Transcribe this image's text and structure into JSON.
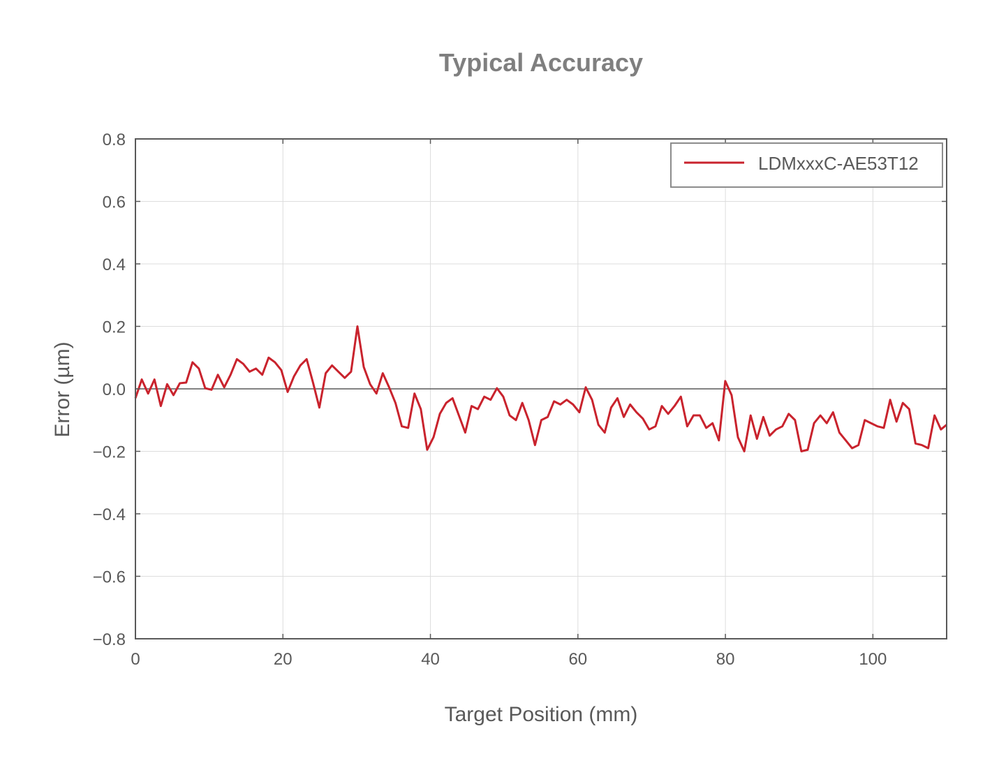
{
  "chart_data": {
    "type": "line",
    "title": "Typical Accuracy",
    "xlabel": "Target Position (mm)",
    "ylabel": "Error (µm)",
    "xlim": [
      0,
      110
    ],
    "ylim": [
      -0.8,
      0.8
    ],
    "xticks": [
      0,
      20,
      40,
      60,
      80,
      100
    ],
    "xtick_labels": [
      "0",
      "20",
      "40",
      "60",
      "80",
      "100"
    ],
    "yticks": [
      -0.8,
      -0.6,
      -0.4,
      -0.2,
      0.0,
      0.2,
      0.4,
      0.6,
      0.8
    ],
    "ytick_labels": [
      "−0.8",
      "−0.6",
      "−0.4",
      "−0.2",
      "0.0",
      "0.2",
      "0.4",
      "0.6",
      "0.8"
    ],
    "grid": true,
    "zero_line": true,
    "legend_position": "top-right",
    "colors": {
      "series": "#c9232d",
      "grid": "#dddddd",
      "axis": "#595959",
      "zero_line": "#595959"
    },
    "series": [
      {
        "name": "LDMxxxC-AE53T12",
        "x": [
          0,
          0.86,
          1.72,
          2.58,
          3.44,
          4.3,
          5.16,
          6.02,
          6.88,
          7.74,
          8.6,
          9.46,
          10.32,
          11.18,
          12.04,
          12.9,
          13.76,
          14.62,
          15.48,
          16.34,
          17.2,
          18.06,
          18.92,
          19.78,
          20.64,
          21.5,
          22.36,
          23.22,
          24.08,
          24.94,
          25.8,
          26.66,
          27.52,
          28.38,
          29.24,
          30.1,
          30.96,
          31.82,
          32.68,
          33.54,
          34.4,
          35.26,
          36.12,
          36.98,
          37.84,
          38.7,
          39.56,
          40.42,
          41.28,
          42.14,
          43.0,
          43.86,
          44.72,
          45.58,
          46.44,
          47.3,
          48.16,
          49.02,
          49.88,
          50.74,
          51.6,
          52.46,
          53.32,
          54.18,
          55.04,
          55.9,
          56.76,
          57.62,
          58.48,
          59.34,
          60.2,
          61.06,
          61.92,
          62.78,
          63.64,
          64.5,
          65.36,
          66.22,
          67.08,
          67.94,
          68.8,
          69.66,
          70.52,
          71.38,
          72.24,
          73.1,
          73.96,
          74.82,
          75.68,
          76.54,
          77.4,
          78.26,
          79.12,
          79.98,
          80.84,
          81.7,
          82.56,
          83.42,
          84.28,
          85.14,
          86.0,
          86.86,
          87.72,
          88.58,
          89.44,
          90.3,
          91.16,
          92.02,
          92.88,
          93.74,
          94.6,
          95.46,
          96.32,
          97.18,
          98.04,
          98.9,
          99.76,
          100.62,
          101.48,
          102.34,
          103.2,
          104.06,
          104.92,
          105.78,
          106.64,
          107.5,
          108.36,
          109.22,
          110.0
        ],
        "values": [
          -0.03,
          0.03,
          -0.015,
          0.03,
          -0.055,
          0.015,
          -0.02,
          0.018,
          0.02,
          0.085,
          0.065,
          0.002,
          -0.003,
          0.045,
          0.005,
          0.045,
          0.095,
          0.08,
          0.055,
          0.065,
          0.045,
          0.1,
          0.085,
          0.06,
          -0.01,
          0.04,
          0.075,
          0.095,
          0.02,
          -0.06,
          0.05,
          0.075,
          0.055,
          0.035,
          0.055,
          0.2,
          0.07,
          0.015,
          -0.015,
          0.05,
          0.005,
          -0.045,
          -0.12,
          -0.125,
          -0.015,
          -0.065,
          -0.195,
          -0.155,
          -0.08,
          -0.045,
          -0.03,
          -0.085,
          -0.14,
          -0.055,
          -0.065,
          -0.025,
          -0.035,
          0.002,
          -0.025,
          -0.085,
          -0.1,
          -0.045,
          -0.1,
          -0.18,
          -0.1,
          -0.09,
          -0.04,
          -0.05,
          -0.035,
          -0.05,
          -0.075,
          0.005,
          -0.035,
          -0.115,
          -0.14,
          -0.06,
          -0.03,
          -0.09,
          -0.05,
          -0.075,
          -0.095,
          -0.13,
          -0.12,
          -0.055,
          -0.08,
          -0.055,
          -0.025,
          -0.12,
          -0.085,
          -0.085,
          -0.125,
          -0.11,
          -0.165,
          0.025,
          -0.02,
          -0.155,
          -0.2,
          -0.085,
          -0.16,
          -0.09,
          -0.15,
          -0.13,
          -0.12,
          -0.08,
          -0.1,
          -0.2,
          -0.195,
          -0.11,
          -0.085,
          -0.11,
          -0.075,
          -0.14,
          -0.165,
          -0.19,
          -0.18,
          -0.1,
          -0.11,
          -0.12,
          -0.125,
          -0.035,
          -0.105,
          -0.045,
          -0.065,
          -0.175,
          -0.18,
          -0.19,
          -0.085,
          -0.13,
          -0.115
        ]
      }
    ]
  }
}
